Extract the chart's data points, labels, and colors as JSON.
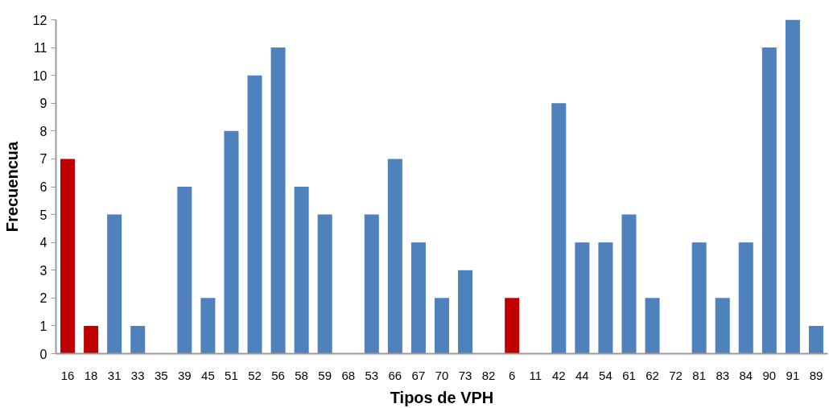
{
  "chart_data": {
    "type": "bar",
    "xlabel": "Tipos de VPH",
    "ylabel": "Frecuencua",
    "categories": [
      "16",
      "18",
      "31",
      "33",
      "35",
      "39",
      "45",
      "51",
      "52",
      "56",
      "58",
      "59",
      "68",
      "53",
      "66",
      "67",
      "70",
      "73",
      "82",
      "6",
      "11",
      "42",
      "44",
      "54",
      "61",
      "62",
      "72",
      "81",
      "83",
      "84",
      "90",
      "91",
      "89"
    ],
    "values": [
      7,
      1,
      5,
      1,
      0,
      6,
      2,
      8,
      10,
      11,
      6,
      5,
      0,
      5,
      7,
      4,
      2,
      3,
      0,
      2,
      0,
      9,
      4,
      4,
      5,
      2,
      0,
      4,
      2,
      4,
      11,
      12,
      1
    ],
    "colors": [
      "#c00000",
      "#c00000",
      "#4f81bd",
      "#4f81bd",
      "#4f81bd",
      "#4f81bd",
      "#4f81bd",
      "#4f81bd",
      "#4f81bd",
      "#4f81bd",
      "#4f81bd",
      "#4f81bd",
      "#4f81bd",
      "#4f81bd",
      "#4f81bd",
      "#4f81bd",
      "#4f81bd",
      "#4f81bd",
      "#4f81bd",
      "#c00000",
      "#4f81bd",
      "#4f81bd",
      "#4f81bd",
      "#4f81bd",
      "#4f81bd",
      "#4f81bd",
      "#4f81bd",
      "#4f81bd",
      "#4f81bd",
      "#4f81bd",
      "#4f81bd",
      "#4f81bd",
      "#4f81bd"
    ],
    "ylim": [
      0,
      12
    ],
    "yticks": [
      0,
      1,
      2,
      3,
      4,
      5,
      6,
      7,
      8,
      9,
      10,
      11,
      12
    ]
  }
}
